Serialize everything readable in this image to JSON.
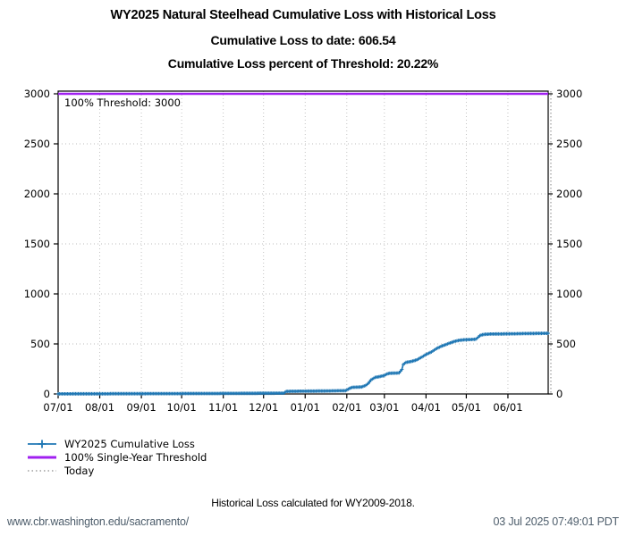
{
  "header": {
    "line1": "WY2025 Natural Steelhead Cumulative Loss with Historical Loss",
    "line2": "Cumulative Loss to date: 606.54",
    "line3": "Cumulative Loss percent of Threshold: 20.22%"
  },
  "chart_data": {
    "type": "line",
    "title": "WY2025 Natural Steelhead Cumulative Loss with Historical Loss",
    "subtitle_values": {
      "cumulative_loss_to_date": 606.54,
      "cumulative_loss_percent_of_threshold": 20.22
    },
    "x_axis": {
      "tick_labels": [
        "07/01",
        "08/01",
        "09/01",
        "10/01",
        "11/01",
        "12/01",
        "01/01",
        "02/01",
        "03/01",
        "04/01",
        "05/01",
        "06/01"
      ],
      "tick_day_offsets": [
        0,
        31,
        62,
        92,
        123,
        153,
        184,
        215,
        243,
        274,
        304,
        335
      ],
      "range_days": [
        0,
        365
      ]
    },
    "y_axis": {
      "ticks": [
        0,
        500,
        1000,
        1500,
        2000,
        2500,
        3000
      ],
      "ylim": [
        0,
        3000
      ],
      "mirrored_right": true
    },
    "grid": "dotted",
    "series": [
      {
        "name": "WY2025 Cumulative Loss",
        "color": "#1f77b4",
        "marker": "plus",
        "final_value": 606.54,
        "breakpoints_day_value": [
          [
            0,
            1
          ],
          [
            31,
            2
          ],
          [
            62,
            3
          ],
          [
            92,
            4
          ],
          [
            123,
            5
          ],
          [
            153,
            7
          ],
          [
            168,
            8
          ],
          [
            170,
            26
          ],
          [
            184,
            28
          ],
          [
            200,
            30
          ],
          [
            214,
            33
          ],
          [
            217,
            55
          ],
          [
            219,
            66
          ],
          [
            226,
            70
          ],
          [
            229,
            85
          ],
          [
            231,
            105
          ],
          [
            233,
            140
          ],
          [
            236,
            165
          ],
          [
            240,
            175
          ],
          [
            243,
            185
          ],
          [
            245,
            200
          ],
          [
            247,
            207
          ],
          [
            254,
            210
          ],
          [
            256,
            245
          ],
          [
            257,
            295
          ],
          [
            259,
            315
          ],
          [
            263,
            325
          ],
          [
            267,
            340
          ],
          [
            271,
            370
          ],
          [
            274,
            395
          ],
          [
            278,
            420
          ],
          [
            282,
            455
          ],
          [
            286,
            480
          ],
          [
            290,
            500
          ],
          [
            293,
            515
          ],
          [
            296,
            528
          ],
          [
            299,
            537
          ],
          [
            302,
            541
          ],
          [
            307,
            544
          ],
          [
            311,
            547
          ],
          [
            313,
            568
          ],
          [
            314,
            583
          ],
          [
            316,
            592
          ],
          [
            318,
            596
          ],
          [
            322,
            599
          ],
          [
            335,
            601
          ],
          [
            350,
            604
          ],
          [
            365,
            606.54
          ]
        ]
      }
    ],
    "threshold": {
      "value": 3000,
      "annotation": "100% Threshold: 3000",
      "color": "#a020f0"
    },
    "today": {
      "day_offset": 367,
      "color": "#888888",
      "style": "dotted"
    },
    "legend_position": "below-left"
  },
  "legend": {
    "items": [
      {
        "label": "WY2025 Cumulative Loss"
      },
      {
        "label": "100% Single-Year Threshold"
      },
      {
        "label": "Today"
      }
    ]
  },
  "footer": {
    "note": "Historical Loss calculated for WY2009-2018.",
    "site": "www.cbr.washington.edu/sacramento/",
    "timestamp": "03 Jul 2025 07:49:01 PDT"
  }
}
